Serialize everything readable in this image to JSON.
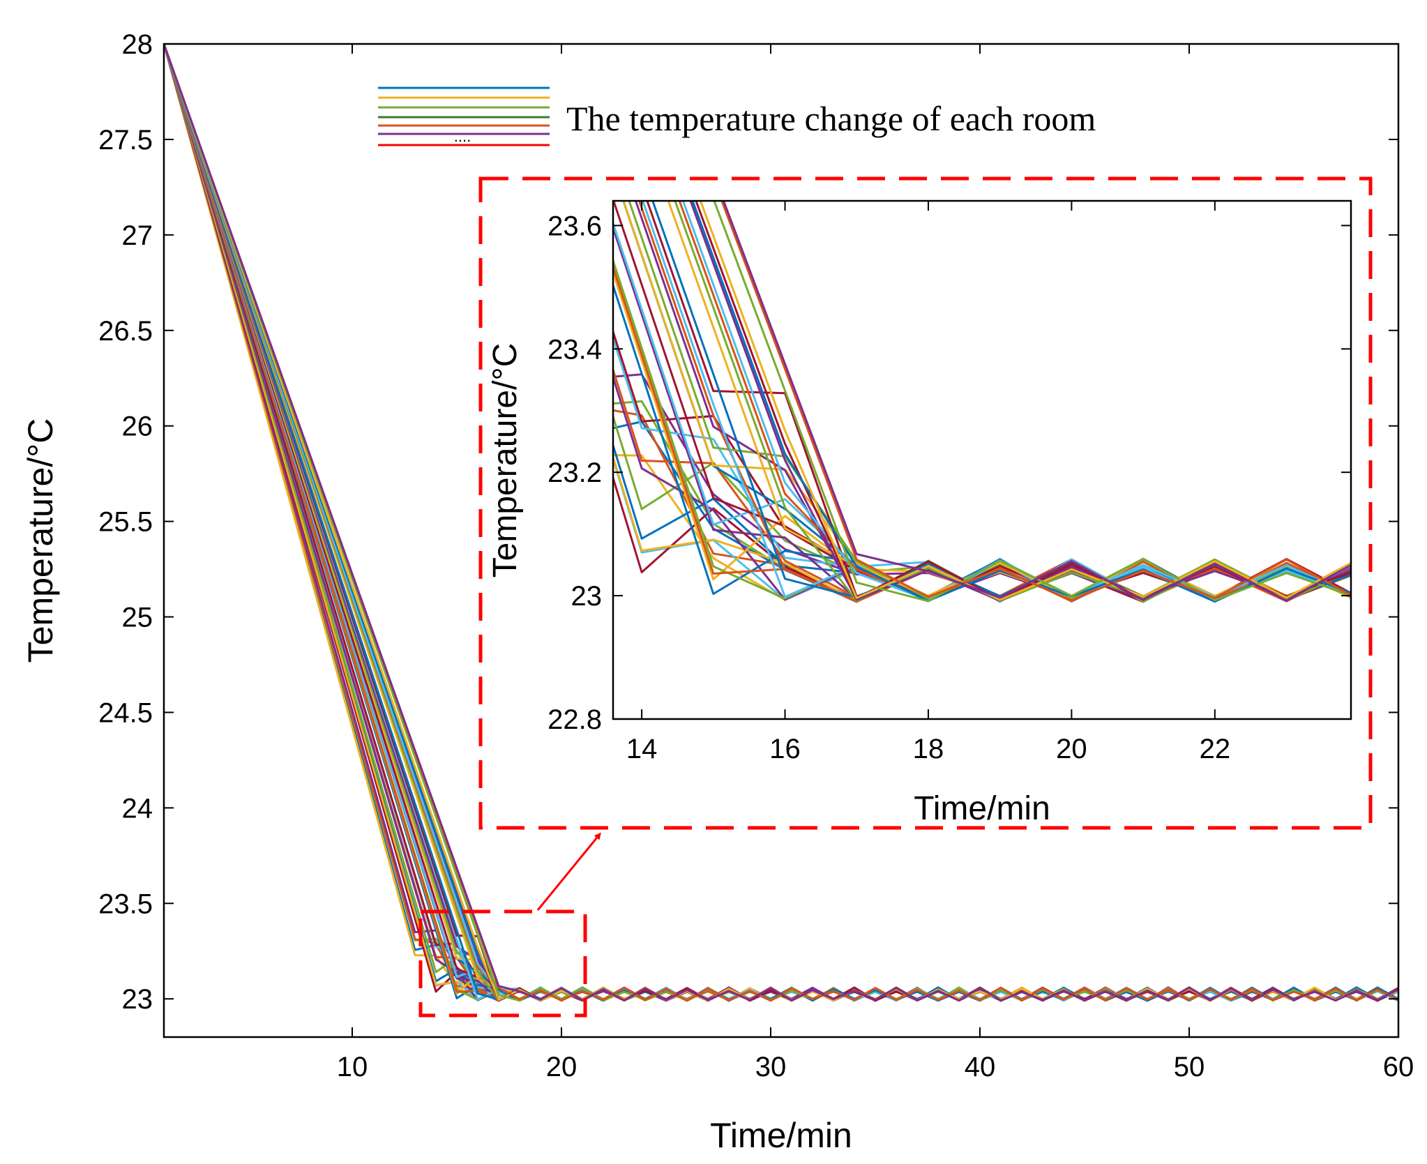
{
  "chart_data": [
    {
      "type": "line",
      "role": "main",
      "title": "",
      "xlabel": "Time/min",
      "ylabel": "Temperature/°C",
      "xlim": [
        1,
        60
      ],
      "ylim": [
        22.8,
        28
      ],
      "xticks": [
        10,
        20,
        30,
        40,
        50,
        60
      ],
      "yticks": [
        23,
        23.5,
        24,
        24.5,
        25,
        25.5,
        26,
        26.5,
        27,
        27.5,
        28
      ],
      "xtick_labels": [
        "10",
        "20",
        "30",
        "40",
        "50",
        "60"
      ],
      "ytick_labels": [
        "23",
        "23.5",
        "24",
        "24.5",
        "25",
        "25.5",
        "26",
        "26.5",
        "27",
        "27.5",
        "28"
      ],
      "start_temperature": 28,
      "setpoint": 23,
      "oscillation_amplitude": 0.06,
      "series_count": 40,
      "series_colors": [
        "#0072BD",
        "#EDB120",
        "#77AC30",
        "#D95319",
        "#7E2F8E",
        "#4DBEEE",
        "#A2142F"
      ],
      "legend": {
        "label": "The temperature change of each room",
        "dots": "....",
        "position": "top"
      },
      "zoom_box": {
        "x": [
          13.5,
          21.5
        ],
        "y": [
          22.92,
          23.46
        ]
      }
    },
    {
      "type": "line",
      "role": "inset",
      "xlabel": "Time/min",
      "ylabel": "Temperature/°C",
      "xlim": [
        13.6,
        23.9
      ],
      "ylim": [
        22.8,
        23.64
      ],
      "xticks": [
        14,
        16,
        18,
        20,
        22
      ],
      "yticks": [
        22.8,
        23,
        23.2,
        23.4,
        23.6
      ],
      "xtick_labels": [
        "14",
        "16",
        "18",
        "20",
        "22"
      ],
      "ytick_labels": [
        "22.8",
        "23",
        "23.2",
        "23.4",
        "23.6"
      ]
    }
  ],
  "annotations": {
    "highlight_color": "#FF0000"
  }
}
